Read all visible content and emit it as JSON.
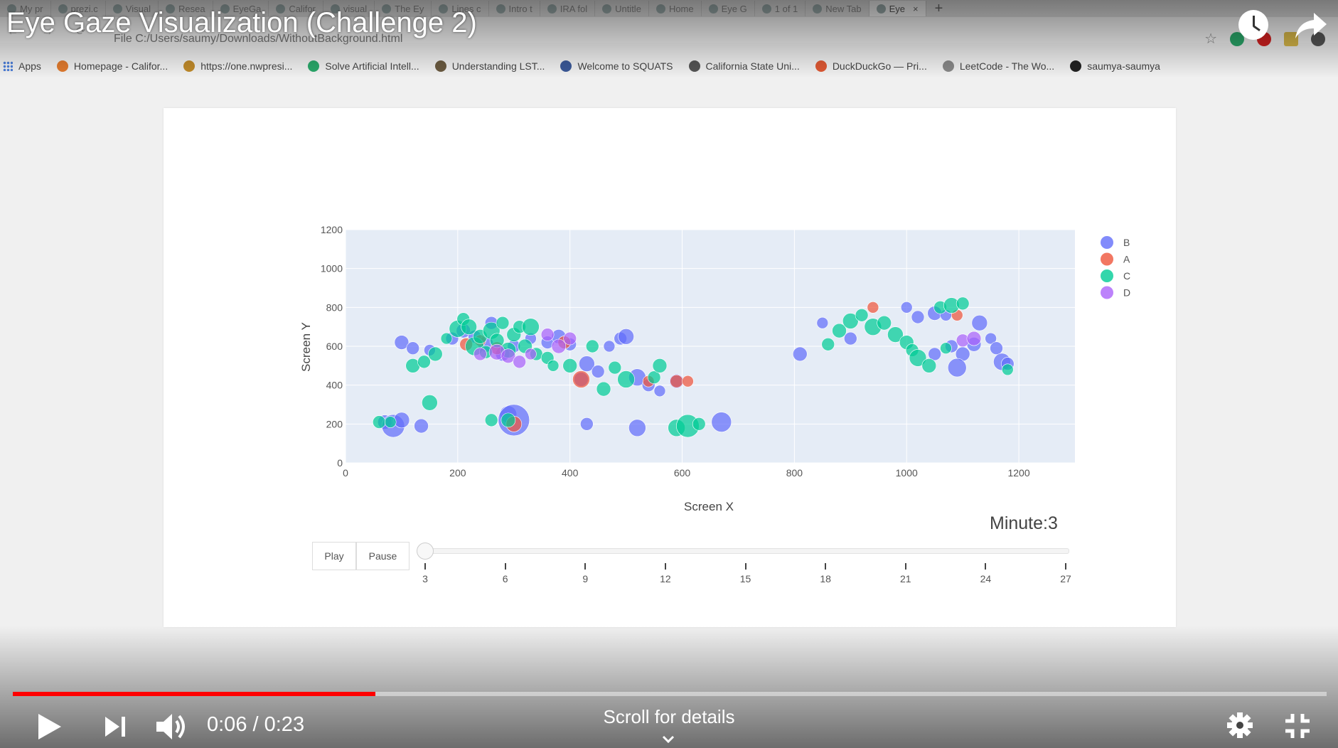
{
  "video": {
    "title": "Eye Gaze Visualization (Challenge 2)",
    "time_current": "0:06",
    "time_total": "0:23",
    "time_sep": " / ",
    "progress_fraction": 0.276,
    "scroll_hint": "Scroll for details"
  },
  "browser": {
    "tabs": [
      {
        "label": "My pr"
      },
      {
        "label": "prezi.c"
      },
      {
        "label": "Visual"
      },
      {
        "label": "Resea"
      },
      {
        "label": "EyeGa"
      },
      {
        "label": "Califor"
      },
      {
        "label": "visual"
      },
      {
        "label": "The Ey"
      },
      {
        "label": "Lines c"
      },
      {
        "label": "Intro t"
      },
      {
        "label": "IRA fol"
      },
      {
        "label": "Untitle"
      },
      {
        "label": "Home"
      },
      {
        "label": "Eye G"
      },
      {
        "label": "1 of 1"
      },
      {
        "label": "New Tab"
      },
      {
        "label": "Eye"
      }
    ],
    "new_tab_symbol": "+",
    "address": "File    C:/Users/saumy/Downloads/WithoutBackground.html",
    "bookmarks": [
      {
        "label": "Apps",
        "color": "#4a7dd8"
      },
      {
        "label": "Homepage - Califor...",
        "color": "#e07a2e"
      },
      {
        "label": "https://one.nwpresi...",
        "color": "#c08a2a"
      },
      {
        "label": "Solve Artificial Intell...",
        "color": "#2aa86a"
      },
      {
        "label": "Understanding LST...",
        "color": "#6a5a40"
      },
      {
        "label": "Welcome to SQUATS",
        "color": "#3b5998"
      },
      {
        "label": "California State Uni...",
        "color": "#555555"
      },
      {
        "label": "DuckDuckGo — Pri...",
        "color": "#de5833"
      },
      {
        "label": "LeetCode - The Wo...",
        "color": "#888888"
      },
      {
        "label": "saumya-saumya",
        "color": "#222222"
      }
    ]
  },
  "controls": {
    "play_label": "Play",
    "pause_label": "Pause",
    "minute_label": "Minute:3",
    "slider_ticks": [
      "3",
      "6",
      "9",
      "12",
      "15",
      "18",
      "21",
      "24",
      "27"
    ],
    "slider_value": 3
  },
  "chart_data": {
    "type": "scatter",
    "xlabel": "Screen X",
    "ylabel": "Screen Y",
    "xlim": [
      0,
      1300
    ],
    "ylim": [
      0,
      1200
    ],
    "xticks": [
      0,
      200,
      400,
      600,
      800,
      1000,
      1200
    ],
    "yticks": [
      0,
      200,
      400,
      600,
      800,
      1000,
      1200
    ],
    "grid": true,
    "legend_position": "right",
    "series": [
      {
        "name": "B",
        "color": "#636efa",
        "points": [
          [
            100,
            620,
            10
          ],
          [
            120,
            590,
            9
          ],
          [
            150,
            580,
            8
          ],
          [
            190,
            640,
            9
          ],
          [
            210,
            680,
            10
          ],
          [
            230,
            650,
            9
          ],
          [
            250,
            610,
            11
          ],
          [
            260,
            720,
            9
          ],
          [
            280,
            560,
            10
          ],
          [
            300,
            600,
            9
          ],
          [
            330,
            640,
            8
          ],
          [
            360,
            620,
            9
          ],
          [
            380,
            650,
            10
          ],
          [
            400,
            610,
            9
          ],
          [
            420,
            430,
            10
          ],
          [
            430,
            510,
            11
          ],
          [
            450,
            470,
            9
          ],
          [
            470,
            600,
            8
          ],
          [
            490,
            640,
            9
          ],
          [
            500,
            650,
            11
          ],
          [
            520,
            440,
            12
          ],
          [
            540,
            400,
            9
          ],
          [
            560,
            370,
            8
          ],
          [
            590,
            420,
            10
          ],
          [
            70,
            210,
            10
          ],
          [
            85,
            190,
            16
          ],
          [
            100,
            220,
            11
          ],
          [
            135,
            190,
            10
          ],
          [
            290,
            250,
            12
          ],
          [
            300,
            220,
            22
          ],
          [
            430,
            200,
            9
          ],
          [
            520,
            180,
            12
          ],
          [
            670,
            210,
            14
          ],
          [
            810,
            560,
            10
          ],
          [
            850,
            720,
            8
          ],
          [
            900,
            640,
            9
          ],
          [
            1000,
            800,
            8
          ],
          [
            1020,
            750,
            9
          ],
          [
            1050,
            770,
            10
          ],
          [
            1070,
            760,
            8
          ],
          [
            1080,
            600,
            9
          ],
          [
            1100,
            560,
            10
          ],
          [
            1130,
            720,
            11
          ],
          [
            1150,
            640,
            8
          ],
          [
            1160,
            590,
            9
          ],
          [
            1170,
            520,
            12
          ],
          [
            1180,
            510,
            9
          ],
          [
            1090,
            490,
            13
          ],
          [
            1050,
            560,
            9
          ],
          [
            1120,
            610,
            10
          ]
        ]
      },
      {
        "name": "A",
        "color": "#ef553b",
        "points": [
          [
            215,
            610,
            9
          ],
          [
            240,
            630,
            8
          ],
          [
            270,
            590,
            9
          ],
          [
            390,
            620,
            9
          ],
          [
            420,
            430,
            12
          ],
          [
            540,
            420,
            8
          ],
          [
            590,
            420,
            9
          ],
          [
            610,
            420,
            8
          ],
          [
            300,
            200,
            11
          ],
          [
            940,
            800,
            8
          ],
          [
            1090,
            760,
            8
          ]
        ]
      },
      {
        "name": "C",
        "color": "#00cc96",
        "points": [
          [
            120,
            500,
            10
          ],
          [
            140,
            520,
            9
          ],
          [
            160,
            560,
            10
          ],
          [
            180,
            640,
            8
          ],
          [
            200,
            690,
            12
          ],
          [
            210,
            740,
            9
          ],
          [
            220,
            700,
            11
          ],
          [
            230,
            600,
            13
          ],
          [
            240,
            650,
            10
          ],
          [
            250,
            570,
            9
          ],
          [
            260,
            680,
            12
          ],
          [
            270,
            630,
            10
          ],
          [
            280,
            720,
            9
          ],
          [
            290,
            580,
            11
          ],
          [
            300,
            660,
            10
          ],
          [
            310,
            700,
            9
          ],
          [
            320,
            600,
            10
          ],
          [
            330,
            700,
            12
          ],
          [
            340,
            560,
            9
          ],
          [
            360,
            540,
            9
          ],
          [
            370,
            500,
            8
          ],
          [
            400,
            500,
            10
          ],
          [
            440,
            600,
            9
          ],
          [
            460,
            380,
            10
          ],
          [
            480,
            490,
            9
          ],
          [
            500,
            430,
            12
          ],
          [
            550,
            440,
            9
          ],
          [
            560,
            500,
            10
          ],
          [
            60,
            210,
            9
          ],
          [
            80,
            210,
            8
          ],
          [
            150,
            310,
            11
          ],
          [
            260,
            220,
            9
          ],
          [
            290,
            220,
            10
          ],
          [
            590,
            180,
            12
          ],
          [
            610,
            190,
            16
          ],
          [
            630,
            200,
            9
          ],
          [
            860,
            610,
            9
          ],
          [
            880,
            680,
            10
          ],
          [
            900,
            730,
            11
          ],
          [
            920,
            760,
            9
          ],
          [
            940,
            700,
            12
          ],
          [
            960,
            720,
            10
          ],
          [
            980,
            660,
            11
          ],
          [
            1000,
            620,
            10
          ],
          [
            1010,
            580,
            9
          ],
          [
            1020,
            540,
            12
          ],
          [
            1040,
            500,
            10
          ],
          [
            1060,
            800,
            9
          ],
          [
            1080,
            810,
            11
          ],
          [
            1100,
            820,
            9
          ],
          [
            1180,
            480,
            8
          ],
          [
            1070,
            590,
            8
          ]
        ]
      },
      {
        "name": "D",
        "color": "#ab63fa",
        "points": [
          [
            240,
            560,
            9
          ],
          [
            270,
            570,
            11
          ],
          [
            290,
            550,
            10
          ],
          [
            310,
            520,
            9
          ],
          [
            330,
            560,
            8
          ],
          [
            360,
            660,
            9
          ],
          [
            380,
            600,
            10
          ],
          [
            400,
            640,
            9
          ],
          [
            1100,
            630,
            9
          ],
          [
            1120,
            640,
            10
          ]
        ]
      }
    ]
  }
}
